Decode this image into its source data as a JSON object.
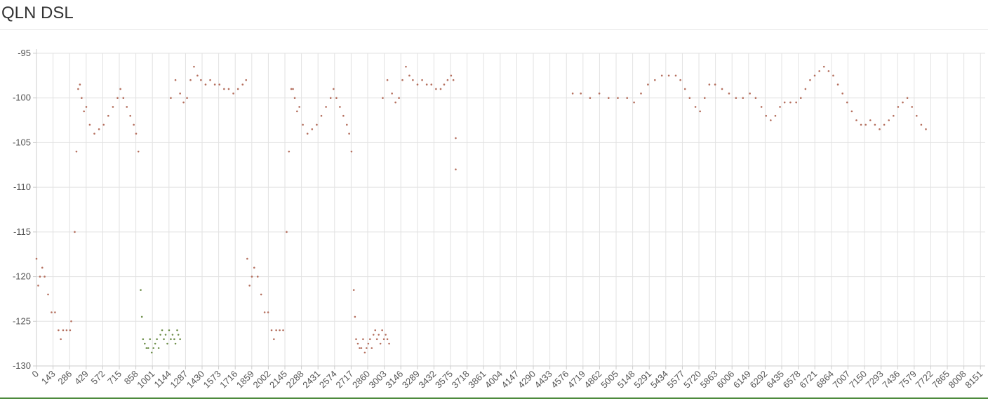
{
  "title": "QLN DSL",
  "chart_data": {
    "type": "scatter",
    "title": "QLN DSL",
    "xlabel": "",
    "ylabel": "",
    "xlim": [
      0,
      8192
    ],
    "ylim": [
      -130,
      -95
    ],
    "grid": true,
    "x_ticks": [
      "0",
      "143",
      "286",
      "429",
      "572",
      "715",
      "858",
      "1001",
      "1144",
      "1287",
      "1430",
      "1573",
      "1716",
      "1859",
      "2002",
      "2145",
      "2288",
      "2431",
      "2574",
      "2717",
      "2860",
      "3003",
      "3146",
      "3289",
      "3432",
      "3575",
      "3718",
      "3861",
      "4004",
      "4147",
      "4290",
      "4433",
      "4576",
      "4719",
      "4862",
      "5005",
      "5148",
      "5291",
      "5434",
      "5577",
      "5720",
      "5863",
      "6006",
      "6149",
      "6292",
      "6435",
      "6578",
      "6721",
      "6864",
      "7007",
      "7150",
      "7293",
      "7436",
      "7579",
      "7722",
      "7865",
      "8008",
      "8151"
    ],
    "y_ticks": [
      -95,
      -100,
      -105,
      -110,
      -115,
      -120,
      -125,
      -130
    ],
    "colors": {
      "main": "#b5705f",
      "alt": "#6e8f4a"
    },
    "series": [
      {
        "color": "#b5705f",
        "points": [
          [
            0,
            -118
          ],
          [
            15,
            -121
          ],
          [
            30,
            -120
          ],
          [
            50,
            -119
          ],
          [
            70,
            -120
          ],
          [
            100,
            -122
          ],
          [
            130,
            -124
          ],
          [
            160,
            -124
          ],
          [
            190,
            -126
          ],
          [
            210,
            -127
          ],
          [
            230,
            -126
          ],
          [
            260,
            -126
          ],
          [
            290,
            -126
          ],
          [
            300,
            -125
          ],
          [
            330,
            -115
          ],
          [
            345,
            -106
          ],
          [
            360,
            -99
          ],
          [
            375,
            -98.5
          ],
          [
            390,
            -100
          ],
          [
            410,
            -101.5
          ],
          [
            430,
            -101
          ],
          [
            460,
            -103
          ],
          [
            500,
            -104
          ],
          [
            540,
            -103.5
          ],
          [
            580,
            -103
          ],
          [
            620,
            -102
          ],
          [
            660,
            -101
          ],
          [
            700,
            -100
          ],
          [
            725,
            -99
          ],
          [
            750,
            -100
          ],
          [
            780,
            -101
          ],
          [
            810,
            -102
          ],
          [
            840,
            -103
          ],
          [
            860,
            -104
          ],
          [
            880,
            -106
          ],
          [
            1160,
            -100
          ],
          [
            1200,
            -98
          ],
          [
            1240,
            -99.5
          ],
          [
            1270,
            -100.5
          ],
          [
            1300,
            -100
          ],
          [
            1330,
            -98
          ],
          [
            1360,
            -96.5
          ],
          [
            1390,
            -97.5
          ],
          [
            1420,
            -98
          ],
          [
            1460,
            -98.5
          ],
          [
            1500,
            -98
          ],
          [
            1540,
            -98.5
          ],
          [
            1580,
            -98.5
          ],
          [
            1620,
            -99
          ],
          [
            1660,
            -99
          ],
          [
            1700,
            -99.5
          ],
          [
            1740,
            -99
          ],
          [
            1780,
            -98.5
          ],
          [
            1810,
            -98
          ],
          [
            1820,
            -118
          ],
          [
            1840,
            -121
          ],
          [
            1860,
            -120
          ],
          [
            1880,
            -119
          ],
          [
            1910,
            -120
          ],
          [
            1940,
            -122
          ],
          [
            1970,
            -124
          ],
          [
            2000,
            -124
          ],
          [
            2030,
            -126
          ],
          [
            2050,
            -127
          ],
          [
            2070,
            -126
          ],
          [
            2100,
            -126
          ],
          [
            2130,
            -126
          ],
          [
            2160,
            -115
          ],
          [
            2180,
            -106
          ],
          [
            2200,
            -99
          ],
          [
            2215,
            -99
          ],
          [
            2230,
            -100
          ],
          [
            2250,
            -101.5
          ],
          [
            2270,
            -101
          ],
          [
            2300,
            -103
          ],
          [
            2340,
            -104
          ],
          [
            2380,
            -103.5
          ],
          [
            2420,
            -103
          ],
          [
            2460,
            -102
          ],
          [
            2500,
            -101
          ],
          [
            2540,
            -100
          ],
          [
            2565,
            -99
          ],
          [
            2590,
            -100
          ],
          [
            2620,
            -101
          ],
          [
            2650,
            -102
          ],
          [
            2680,
            -103
          ],
          [
            2700,
            -104
          ],
          [
            2720,
            -106
          ],
          [
            2990,
            -100
          ],
          [
            3030,
            -98
          ],
          [
            3070,
            -99.5
          ],
          [
            3100,
            -100.5
          ],
          [
            3130,
            -100
          ],
          [
            3160,
            -98
          ],
          [
            3190,
            -96.5
          ],
          [
            3220,
            -97.5
          ],
          [
            3250,
            -98
          ],
          [
            3290,
            -98.5
          ],
          [
            3330,
            -98
          ],
          [
            3370,
            -98.5
          ],
          [
            3410,
            -98.5
          ],
          [
            3450,
            -99
          ],
          [
            3490,
            -99
          ],
          [
            3520,
            -98.5
          ],
          [
            3550,
            -98
          ],
          [
            3580,
            -97.5
          ],
          [
            3600,
            -98
          ],
          [
            3620,
            -104.5
          ],
          [
            3620,
            -108
          ],
          [
            4630,
            -99.5
          ],
          [
            4700,
            -99.5
          ],
          [
            4780,
            -100
          ],
          [
            4860,
            -99.5
          ],
          [
            4940,
            -100
          ],
          [
            5020,
            -100
          ],
          [
            5100,
            -100
          ],
          [
            5160,
            -100.5
          ],
          [
            5220,
            -99.5
          ],
          [
            5280,
            -98.5
          ],
          [
            5340,
            -98
          ],
          [
            5400,
            -97.5
          ],
          [
            5460,
            -97.5
          ],
          [
            5520,
            -97.5
          ],
          [
            5560,
            -98
          ],
          [
            5600,
            -99
          ],
          [
            5640,
            -100
          ],
          [
            5690,
            -101
          ],
          [
            5730,
            -101.5
          ],
          [
            5770,
            -100
          ],
          [
            5810,
            -98.5
          ],
          [
            5860,
            -98.5
          ],
          [
            5920,
            -99
          ],
          [
            5980,
            -99.5
          ],
          [
            6040,
            -100
          ],
          [
            6100,
            -100
          ],
          [
            6160,
            -99.5
          ],
          [
            6210,
            -100
          ],
          [
            6260,
            -101
          ],
          [
            6300,
            -102
          ],
          [
            6340,
            -102.5
          ],
          [
            6380,
            -102
          ],
          [
            6420,
            -101
          ],
          [
            6460,
            -100.5
          ],
          [
            6510,
            -100.5
          ],
          [
            6560,
            -100.5
          ],
          [
            6600,
            -100
          ],
          [
            6640,
            -99
          ],
          [
            6680,
            -98
          ],
          [
            6720,
            -97.5
          ],
          [
            6760,
            -97
          ],
          [
            6800,
            -96.5
          ],
          [
            6840,
            -97
          ],
          [
            6880,
            -97.5
          ],
          [
            6920,
            -98.5
          ],
          [
            6960,
            -99.5
          ],
          [
            7000,
            -100.5
          ],
          [
            7040,
            -101.5
          ],
          [
            7080,
            -102.5
          ],
          [
            7120,
            -103
          ],
          [
            7160,
            -103
          ],
          [
            7200,
            -102.5
          ],
          [
            7240,
            -103
          ],
          [
            7280,
            -103.5
          ],
          [
            7320,
            -103
          ],
          [
            7360,
            -102.5
          ],
          [
            7400,
            -102
          ],
          [
            7440,
            -101
          ],
          [
            7480,
            -100.5
          ],
          [
            7520,
            -100
          ],
          [
            7560,
            -101
          ],
          [
            7600,
            -102
          ],
          [
            7640,
            -103
          ],
          [
            7680,
            -103.5
          ]
        ]
      },
      {
        "color": "#6e8f4a",
        "points": [
          [
            900,
            -121.5
          ],
          [
            910,
            -124.5
          ],
          [
            920,
            -127
          ],
          [
            935,
            -127.5
          ],
          [
            950,
            -128
          ],
          [
            965,
            -128
          ],
          [
            980,
            -127
          ],
          [
            995,
            -128.5
          ],
          [
            1010,
            -128
          ],
          [
            1025,
            -127.5
          ],
          [
            1040,
            -127
          ],
          [
            1055,
            -128
          ],
          [
            1070,
            -126.5
          ],
          [
            1085,
            -126
          ],
          [
            1100,
            -127
          ],
          [
            1115,
            -126.5
          ],
          [
            1130,
            -127.5
          ],
          [
            1145,
            -126
          ],
          [
            1160,
            -127
          ],
          [
            1175,
            -126.5
          ],
          [
            1190,
            -127
          ],
          [
            1200,
            -127.5
          ],
          [
            1215,
            -126
          ],
          [
            1225,
            -126.5
          ],
          [
            1240,
            -127
          ]
        ]
      },
      {
        "color": "#b5705f",
        "points": [
          [
            2740,
            -121.5
          ],
          [
            2750,
            -124.5
          ],
          [
            2760,
            -127
          ],
          [
            2775,
            -127.5
          ],
          [
            2790,
            -128
          ],
          [
            2805,
            -128
          ],
          [
            2820,
            -127
          ],
          [
            2835,
            -128.5
          ],
          [
            2850,
            -128
          ],
          [
            2865,
            -127.5
          ],
          [
            2880,
            -127
          ],
          [
            2895,
            -128
          ],
          [
            2910,
            -126.5
          ],
          [
            2925,
            -126
          ],
          [
            2940,
            -127
          ],
          [
            2955,
            -126.5
          ],
          [
            2970,
            -127.5
          ],
          [
            2985,
            -126
          ],
          [
            3000,
            -127
          ],
          [
            3015,
            -126.5
          ],
          [
            3030,
            -127
          ],
          [
            3045,
            -127.5
          ]
        ]
      }
    ]
  }
}
